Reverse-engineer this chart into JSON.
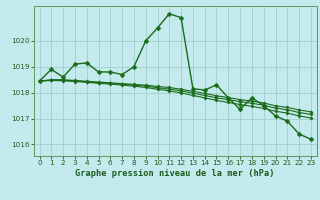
{
  "title": "Graphe pression niveau de la mer (hPa)",
  "background_color": "#c5eaed",
  "grid_color": "#9ecfcc",
  "line_color": "#1a6b1a",
  "xlim": [
    -0.5,
    23.5
  ],
  "ylim": [
    1015.55,
    1021.35
  ],
  "yticks": [
    1016,
    1017,
    1018,
    1019,
    1020
  ],
  "xticks": [
    0,
    1,
    2,
    3,
    4,
    5,
    6,
    7,
    8,
    9,
    10,
    11,
    12,
    13,
    14,
    15,
    16,
    17,
    18,
    19,
    20,
    21,
    22,
    23
  ],
  "line1_y": [
    1018.45,
    1018.9,
    1018.6,
    1019.1,
    1019.15,
    1018.8,
    1018.8,
    1018.7,
    1019.0,
    1020.0,
    1020.5,
    1021.05,
    1020.9,
    1018.15,
    1018.1,
    1018.3,
    1017.8,
    1017.35,
    1017.8,
    1017.5,
    1017.1,
    1016.9,
    1016.4,
    1016.2
  ],
  "line2_y": [
    1018.45,
    1018.5,
    1018.5,
    1018.47,
    1018.44,
    1018.41,
    1018.38,
    1018.35,
    1018.32,
    1018.29,
    1018.24,
    1018.2,
    1018.13,
    1018.05,
    1017.97,
    1017.88,
    1017.81,
    1017.73,
    1017.67,
    1017.6,
    1017.49,
    1017.43,
    1017.33,
    1017.26
  ],
  "line3_y": [
    1018.45,
    1018.48,
    1018.48,
    1018.45,
    1018.42,
    1018.39,
    1018.36,
    1018.32,
    1018.29,
    1018.25,
    1018.19,
    1018.14,
    1018.07,
    1017.98,
    1017.89,
    1017.8,
    1017.73,
    1017.65,
    1017.59,
    1017.51,
    1017.4,
    1017.34,
    1017.23,
    1017.16
  ],
  "line4_y": [
    1018.45,
    1018.47,
    1018.46,
    1018.43,
    1018.4,
    1018.36,
    1018.33,
    1018.29,
    1018.25,
    1018.2,
    1018.13,
    1018.07,
    1017.99,
    1017.89,
    1017.8,
    1017.7,
    1017.62,
    1017.54,
    1017.47,
    1017.39,
    1017.28,
    1017.21,
    1017.1,
    1017.02
  ]
}
